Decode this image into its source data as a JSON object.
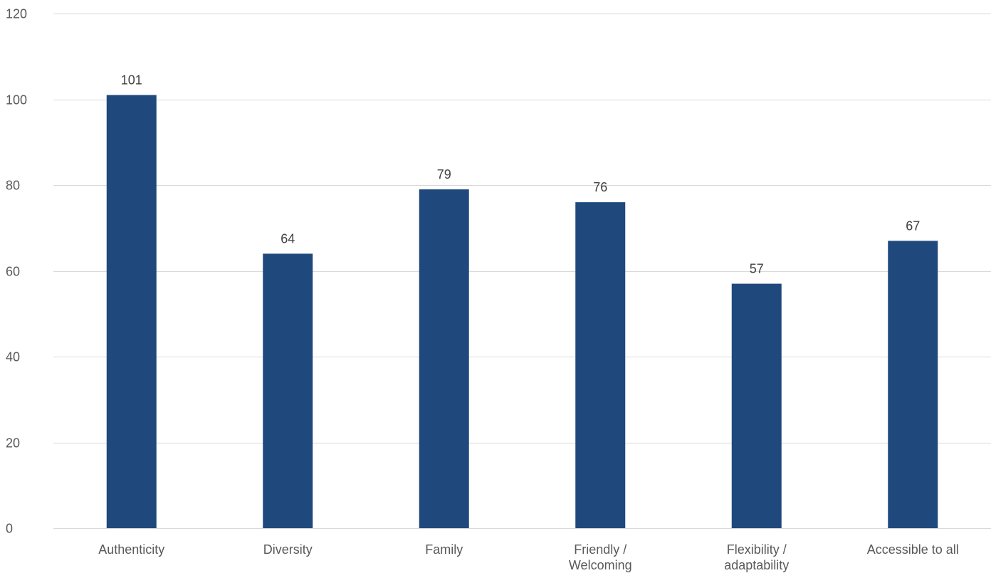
{
  "chart_data": {
    "type": "bar",
    "categories": [
      "Authenticity",
      "Diversity",
      "Family",
      "Friendly / Welcoming",
      "Flexibility / adaptability",
      "Accessible to all"
    ],
    "category_lines": [
      [
        "Authenticity"
      ],
      [
        "Diversity"
      ],
      [
        "Family"
      ],
      [
        "Friendly /",
        "Welcoming"
      ],
      [
        "Flexibility /",
        "adaptability"
      ],
      [
        "Accessible to all"
      ]
    ],
    "values": [
      101,
      64,
      79,
      76,
      57,
      67
    ],
    "data_labels": [
      "101",
      "64",
      "79",
      "76",
      "57",
      "67"
    ],
    "y_ticks": [
      0,
      20,
      40,
      60,
      80,
      100,
      120
    ],
    "y_tick_labels": [
      "0",
      "20",
      "40",
      "60",
      "80",
      "100",
      "120"
    ],
    "ylim": [
      0,
      120
    ],
    "title": "",
    "xlabel": "",
    "ylabel": "",
    "grid": true,
    "legend": "none",
    "colors": {
      "bar": "#1f497d"
    }
  }
}
